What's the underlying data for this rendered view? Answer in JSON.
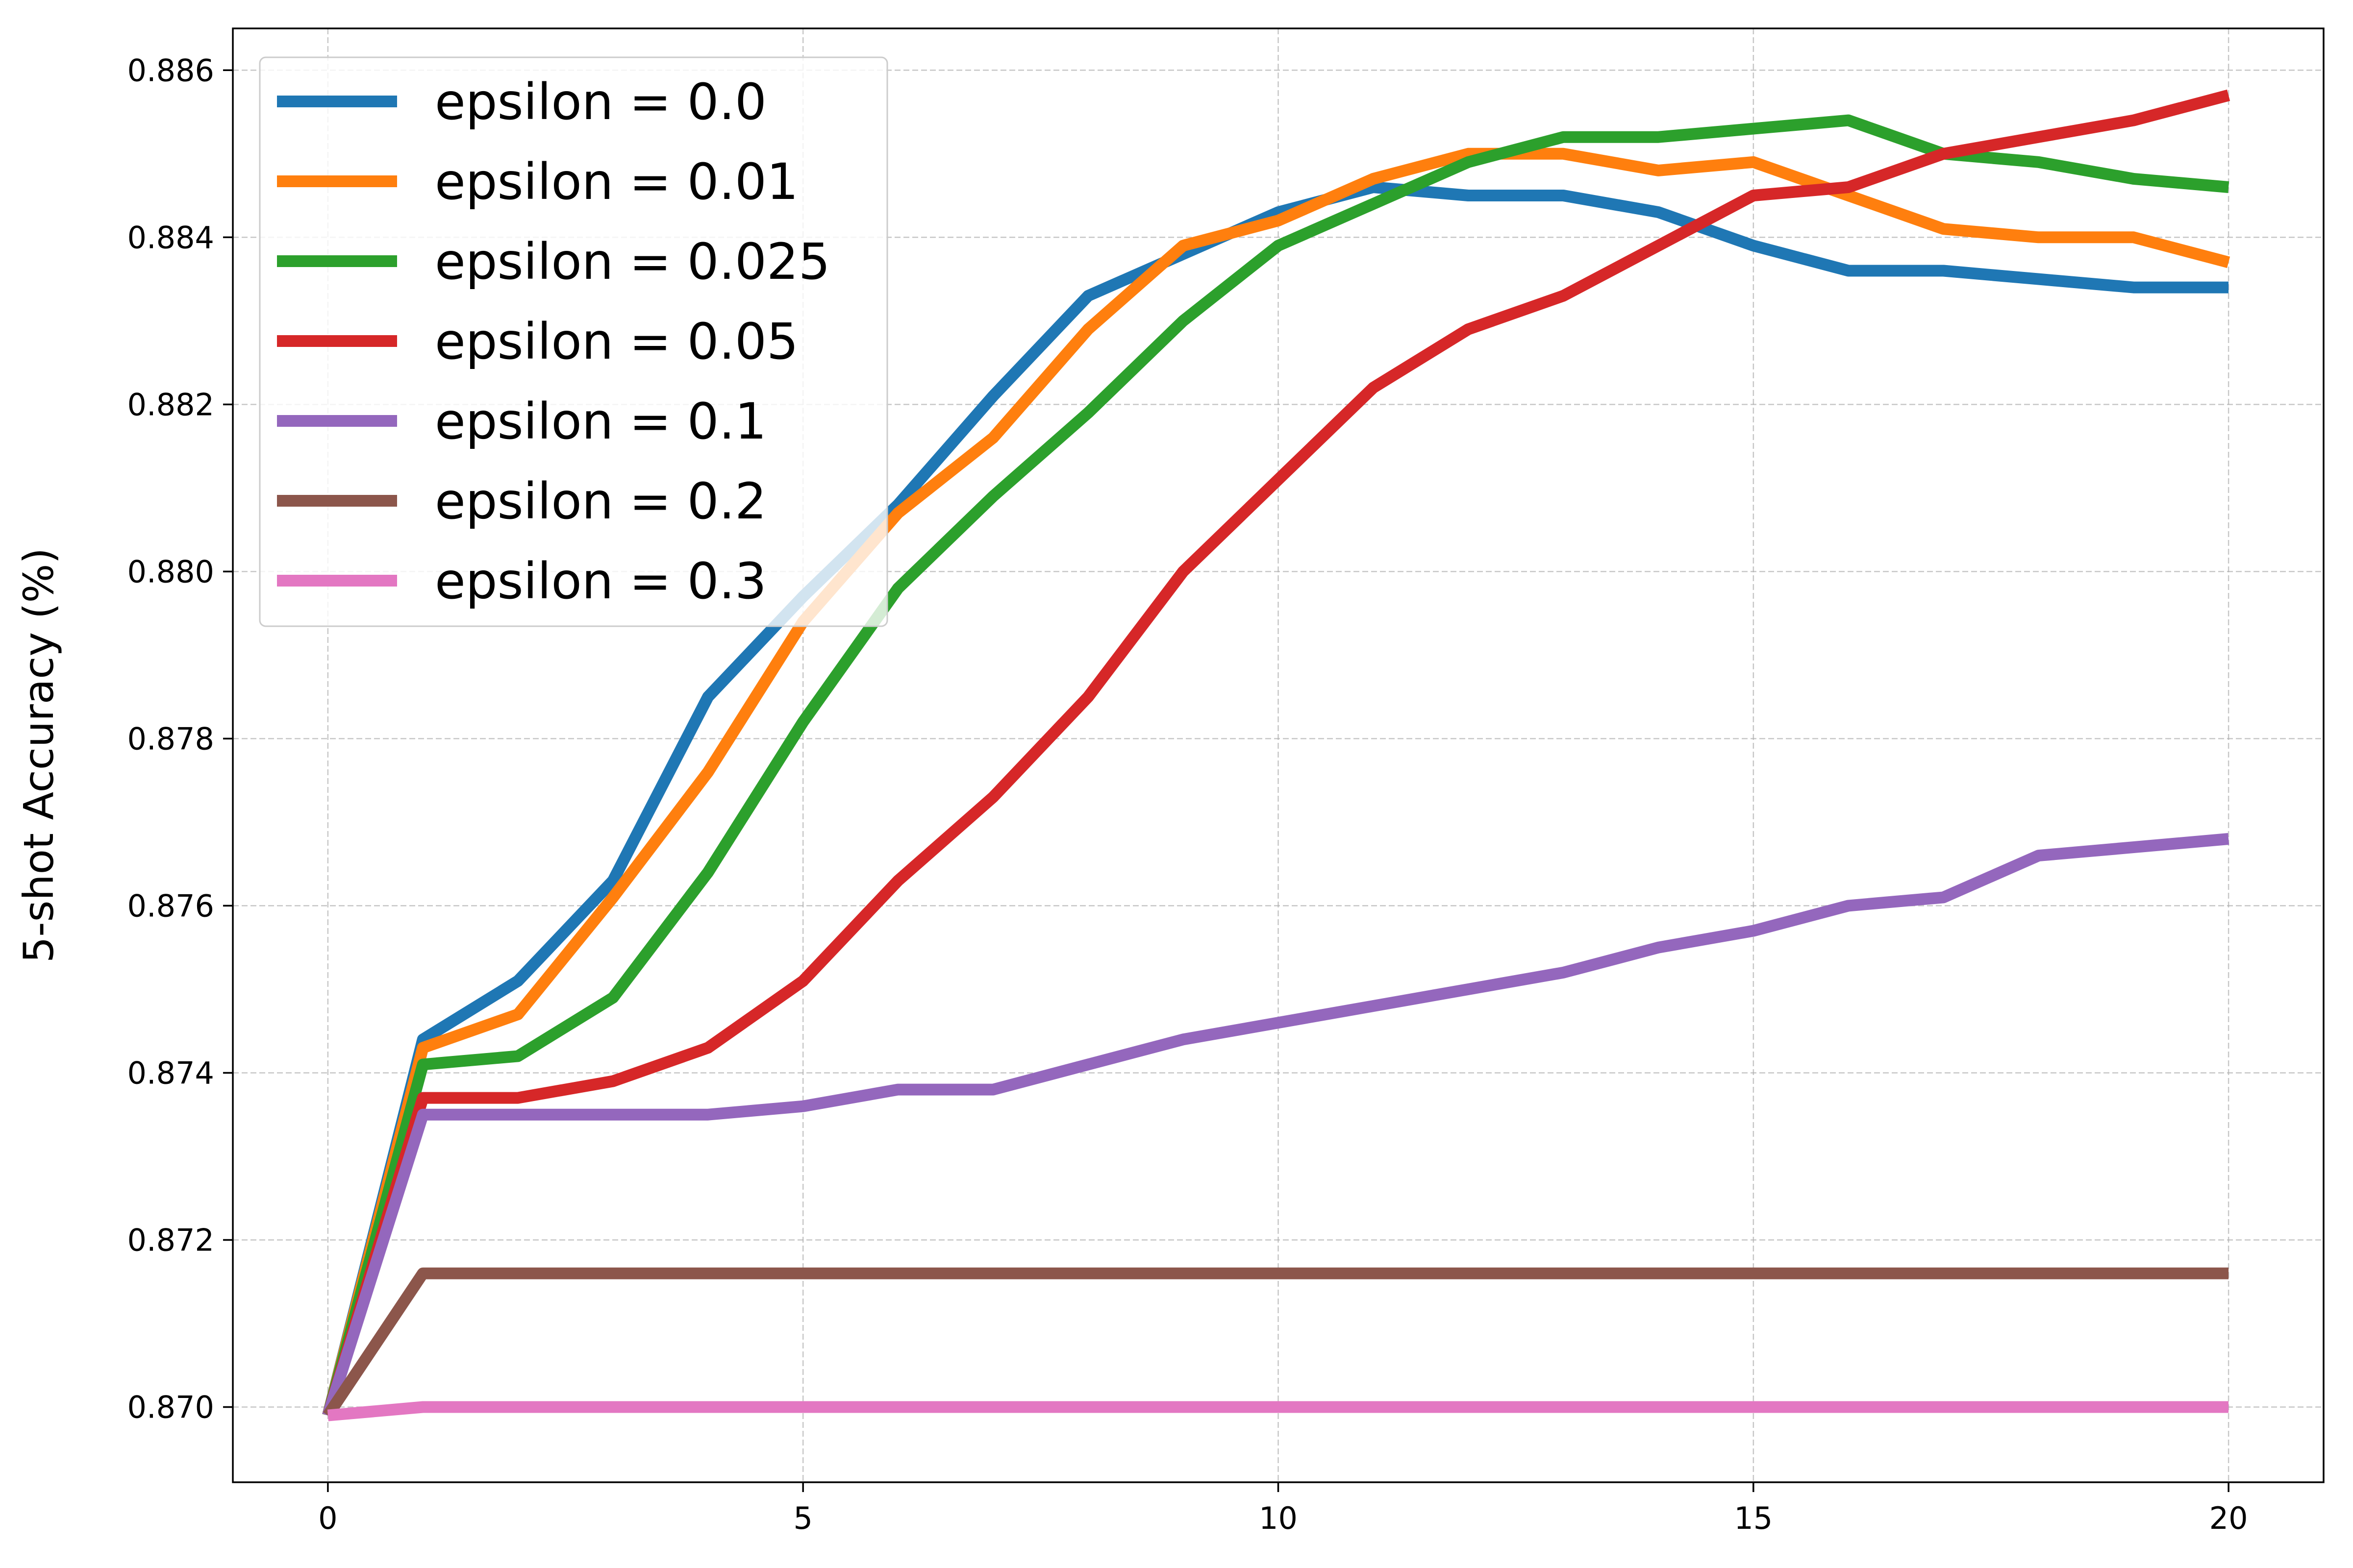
{
  "chart_data": {
    "type": "line",
    "title": "",
    "xlabel": "",
    "ylabel": "5-shot Accuracy (%)",
    "xlim": [
      -1,
      21
    ],
    "ylim": [
      0.8691,
      0.8865
    ],
    "xticks": [
      0,
      5,
      10,
      15,
      20
    ],
    "xtick_labels": [
      "0",
      "5",
      "10",
      "15",
      "20"
    ],
    "yticks": [
      0.87,
      0.872,
      0.874,
      0.876,
      0.878,
      0.88,
      0.882,
      0.884,
      0.886
    ],
    "ytick_labels": [
      "0.870",
      "0.872",
      "0.874",
      "0.876",
      "0.878",
      "0.880",
      "0.882",
      "0.884",
      "0.886"
    ],
    "grid": true,
    "legend_position": "top-left",
    "x": [
      0,
      1,
      2,
      3,
      4,
      5,
      6,
      7,
      8,
      9,
      10,
      11,
      12,
      13,
      14,
      15,
      16,
      17,
      18,
      19,
      20
    ],
    "series": [
      {
        "name": "epsilon = 0.0",
        "color": "#1f77b4",
        "values": [
          0.8699,
          0.8744,
          0.8751,
          0.8763,
          0.8785,
          0.8797,
          0.8808,
          0.8821,
          0.8833,
          0.8838,
          0.8843,
          0.8846,
          0.8845,
          0.8845,
          0.8843,
          0.8839,
          0.8836,
          0.8836,
          0.8835,
          0.8834,
          0.8834
        ]
      },
      {
        "name": "epsilon = 0.01",
        "color": "#ff7f0e",
        "values": [
          0.8699,
          0.8743,
          0.8747,
          0.8761,
          0.8776,
          0.8794,
          0.8807,
          0.8816,
          0.8829,
          0.8839,
          0.8842,
          0.8847,
          0.885,
          0.885,
          0.8848,
          0.8849,
          0.8845,
          0.8841,
          0.884,
          0.884,
          0.8837
        ]
      },
      {
        "name": "epsilon = 0.025",
        "color": "#2ca02c",
        "values": [
          0.8699,
          0.8741,
          0.8742,
          0.8749,
          0.8764,
          0.8782,
          0.8798,
          0.8809,
          0.8819,
          0.883,
          0.8839,
          0.8844,
          0.8849,
          0.8852,
          0.8852,
          0.8853,
          0.8854,
          0.885,
          0.8849,
          0.8847,
          0.8846
        ]
      },
      {
        "name": "epsilon = 0.05",
        "color": "#d62728",
        "values": [
          0.8699,
          0.8737,
          0.8737,
          0.8739,
          0.8743,
          0.8751,
          0.8763,
          0.8773,
          0.8785,
          0.88,
          0.8811,
          0.8822,
          0.8829,
          0.8833,
          0.8839,
          0.8845,
          0.8846,
          0.885,
          0.8852,
          0.8854,
          0.8857
        ]
      },
      {
        "name": "epsilon = 0.1",
        "color": "#9467bd",
        "values": [
          0.8699,
          0.8735,
          0.8735,
          0.8735,
          0.8735,
          0.8736,
          0.8738,
          0.8738,
          0.8741,
          0.8744,
          0.8746,
          0.8748,
          0.875,
          0.8752,
          0.8755,
          0.8757,
          0.876,
          0.8761,
          0.8766,
          0.8767,
          0.8768
        ]
      },
      {
        "name": "epsilon = 0.2",
        "color": "#8c564b",
        "values": [
          0.8699,
          0.8716,
          0.8716,
          0.8716,
          0.8716,
          0.8716,
          0.8716,
          0.8716,
          0.8716,
          0.8716,
          0.8716,
          0.8716,
          0.8716,
          0.8716,
          0.8716,
          0.8716,
          0.8716,
          0.8716,
          0.8716,
          0.8716,
          0.8716
        ]
      },
      {
        "name": "epsilon = 0.3",
        "color": "#e377c2",
        "values": [
          0.8699,
          0.87,
          0.87,
          0.87,
          0.87,
          0.87,
          0.87,
          0.87,
          0.87,
          0.87,
          0.87,
          0.87,
          0.87,
          0.87,
          0.87,
          0.87,
          0.87,
          0.87,
          0.87,
          0.87,
          0.87
        ]
      }
    ]
  }
}
